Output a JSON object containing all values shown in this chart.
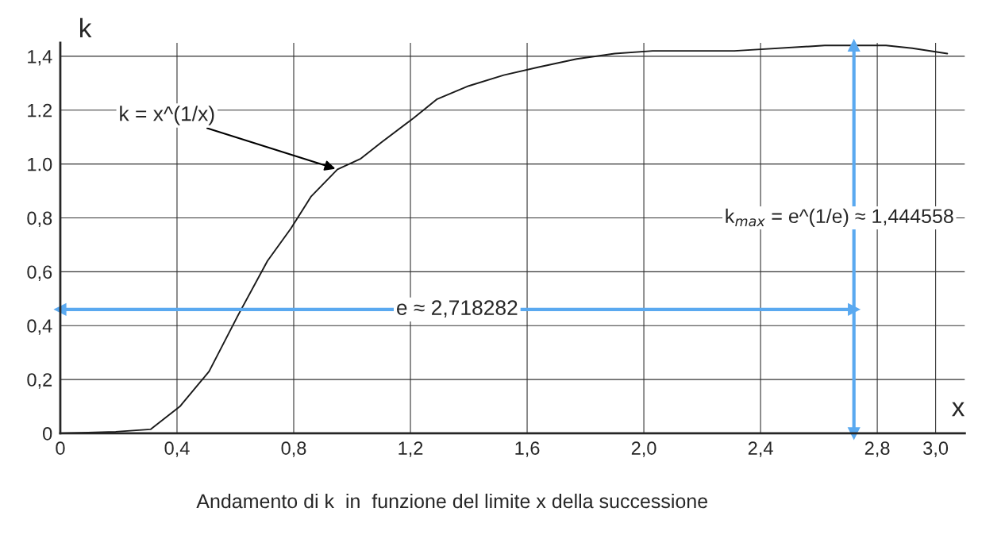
{
  "chart_data": {
    "type": "line",
    "xlabel": "x",
    "ylabel": "k",
    "x": [
      0,
      0.19,
      0.31,
      0.41,
      0.51,
      0.61,
      0.71,
      0.79,
      0.86,
      0.95,
      1.03,
      1.1,
      1.21,
      1.29,
      1.4,
      1.52,
      1.64,
      1.77,
      1.9,
      2.03,
      2.31,
      2.62,
      2.8,
      2.83,
      2.92,
      3.04
    ],
    "series": [
      {
        "color": "#1a1a1a",
        "values": [
          0,
          0.006,
          0.015,
          0.1,
          0.23,
          0.44,
          0.64,
          0.76,
          0.88,
          0.98,
          1.02,
          1.08,
          1.17,
          1.24,
          1.29,
          1.33,
          1.36,
          1.39,
          1.41,
          1.42,
          1.42,
          1.44,
          1.44,
          1.44,
          1.43,
          1.41
        ]
      }
    ],
    "xlim": [
      0,
      3.1
    ],
    "ylim": [
      0,
      1.45
    ],
    "xticks": [
      0,
      {
        "value": 0.4,
        "label": "0,4"
      },
      {
        "value": 0.8,
        "label": "0,8"
      },
      {
        "value": 1.2,
        "label": "1,2"
      },
      {
        "value": 1.6,
        "label": "1,6"
      },
      {
        "value": 2.0,
        "label": "2,0"
      },
      {
        "value": 2.4,
        "label": "2,4"
      },
      {
        "value": 2.8,
        "label": "2,8"
      },
      {
        "value": 3.0,
        "label": "3,0"
      }
    ],
    "yticks": [
      0,
      {
        "value": 0.2,
        "label": "0,2"
      },
      {
        "value": 0.4,
        "label": "0,4"
      },
      {
        "value": 0.6,
        "label": "0,6"
      },
      {
        "value": 0.8,
        "label": "0,8"
      },
      {
        "value": 1.0,
        "label": "1.0"
      },
      {
        "value": 1.2,
        "label": "1.2"
      },
      {
        "value": 1.4,
        "label": "1,4"
      }
    ],
    "grid": true,
    "marker": "none",
    "line_style": "solid",
    "ref_lines": [
      {
        "axis": "x",
        "value": 2.72,
        "label": "k$_{max}$ = e^(1/e) ≈ 1,444558",
        "color": "#5aa9f0"
      },
      {
        "axis": "y",
        "value": 0.46,
        "label": "e ≈ 2,718282",
        "color": "#5aa9f0"
      }
    ],
    "annotations": [
      {
        "text": "k = x^(1/x)",
        "x": 0.95,
        "y": 0.98
      },
      "Andamento di k  in  funzione del limite x della successione"
    ]
  }
}
